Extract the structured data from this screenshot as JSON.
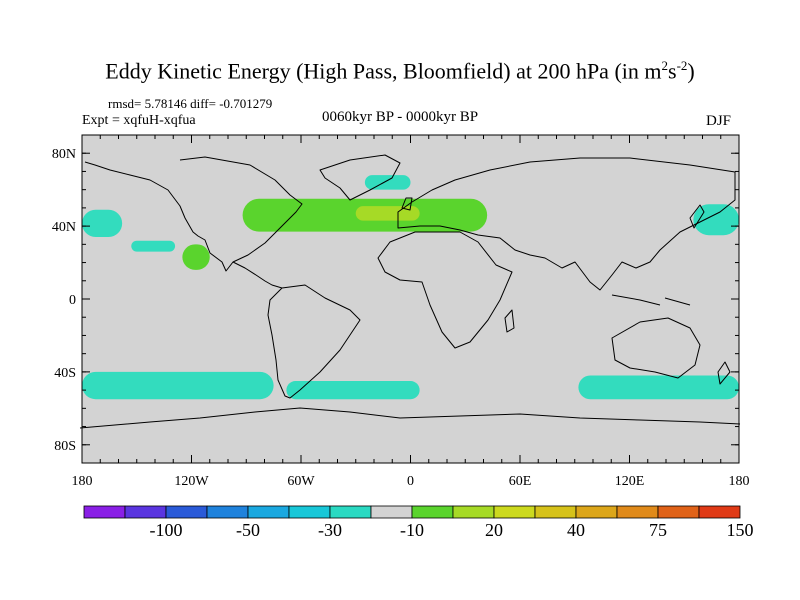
{
  "title": {
    "main": "Eddy Kinetic Energy (High Pass, Bloomfield) at 200 hPa (in m",
    "sup1": "2",
    "mid": "s",
    "sup2": "-2",
    "end": ")"
  },
  "stats": {
    "rmsd_label": "rmsd=",
    "rmsd": "5.78146",
    "diff_label": "diff=",
    "diff": "-0.701279"
  },
  "experiment": "Expt = xqfuH-xqfua",
  "period": "0060kyr BP - 0000kyr BP",
  "season": "DJF",
  "map": {
    "lat_labels": [
      "80N",
      "40N",
      "0",
      "40S",
      "80S"
    ],
    "lat_values": [
      80,
      40,
      0,
      -40,
      -80
    ],
    "lon_labels": [
      "180",
      "120W",
      "60W",
      "0",
      "60E",
      "120E",
      "180"
    ],
    "lon_values": [
      -180,
      -120,
      -60,
      0,
      60,
      120,
      180
    ],
    "background_color": "#d3d3d3",
    "regions": [
      {
        "name": "north-pacific-east",
        "lon": [
          -180,
          -158
        ],
        "lat": [
          34,
          49
        ],
        "color": "#33dcbe"
      },
      {
        "name": "north-pacific-west",
        "lon": [
          155,
          180
        ],
        "lat": [
          35,
          52
        ],
        "color": "#33dcbe"
      },
      {
        "name": "pacific-small-cyan",
        "lon": [
          -153,
          -129
        ],
        "lat": [
          26,
          32
        ],
        "color": "#33dcbe"
      },
      {
        "name": "baja-green",
        "lon": [
          -125,
          -110
        ],
        "lat": [
          16,
          30
        ],
        "color": "#5ad42d"
      },
      {
        "name": "greenland-sea",
        "lon": [
          -25,
          0
        ],
        "lat": [
          60,
          68
        ],
        "color": "#33dcbe"
      },
      {
        "name": "north-atlantic-europe",
        "lon": [
          -92,
          42
        ],
        "lat": [
          37,
          55
        ],
        "color": "#5ad42d"
      },
      {
        "name": "europe-core",
        "lon": [
          -30,
          5
        ],
        "lat": [
          43,
          51
        ],
        "color": "#a6da26"
      },
      {
        "name": "southern-ocean-pacific",
        "lon": [
          -180,
          -75
        ],
        "lat": [
          -55,
          -40
        ],
        "color": "#33dcbe"
      },
      {
        "name": "southern-ocean-atlantic",
        "lon": [
          -68,
          5
        ],
        "lat": [
          -55,
          -45
        ],
        "color": "#33dcbe"
      },
      {
        "name": "southern-ocean-indian",
        "lon": [
          92,
          180
        ],
        "lat": [
          -55,
          -42
        ],
        "color": "#33dcbe"
      }
    ]
  },
  "colorbar": {
    "labels": [
      "-100",
      "-50",
      "-30",
      "-10",
      "20",
      "40",
      "75",
      "150"
    ],
    "colors": [
      "#8a1fe6",
      "#5a35e0",
      "#2a5ad8",
      "#1f82dc",
      "#1aa8e0",
      "#18c7d8",
      "#2ad9c2",
      "#d3d3d3",
      "#5ad42d",
      "#a6da26",
      "#ccd91e",
      "#d6c21a",
      "#dca61a",
      "#e08a1a",
      "#e06218",
      "#e03a16"
    ]
  }
}
